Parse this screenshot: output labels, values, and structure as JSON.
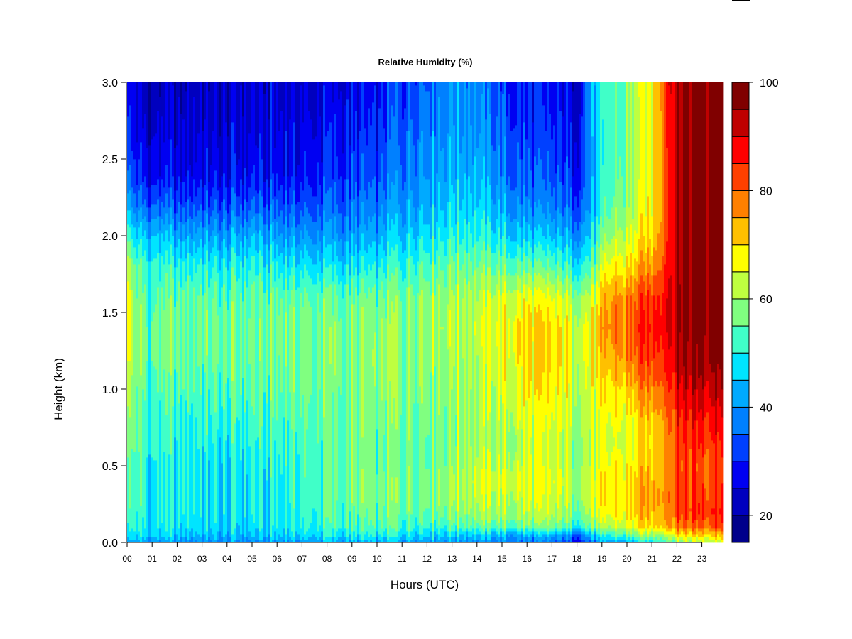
{
  "chart_data": {
    "type": "heatmap",
    "title": "Relative Humidity (%)",
    "xlabel": "Hours (UTC)",
    "ylabel": "Height (km)",
    "x_range": [
      0,
      23.85
    ],
    "y_range": [
      0,
      3.0
    ],
    "x_ticks": [
      "00",
      "01",
      "02",
      "03",
      "04",
      "05",
      "06",
      "07",
      "08",
      "09",
      "10",
      "11",
      "12",
      "13",
      "14",
      "15",
      "16",
      "17",
      "18",
      "19",
      "20",
      "21",
      "22",
      "23"
    ],
    "y_ticks": [
      "0.0",
      "0.5",
      "1.0",
      "1.5",
      "2.0",
      "2.5",
      "3.0"
    ],
    "heights_km": [
      0.0,
      0.05,
      0.1,
      0.2,
      0.3,
      0.4,
      0.5,
      0.65,
      0.8,
      1.0,
      1.2,
      1.4,
      1.6,
      1.8,
      2.0,
      2.2,
      2.4,
      2.6,
      2.8,
      3.0
    ],
    "columns": [
      {
        "hour": 0.0,
        "rh": [
          45,
          50,
          52,
          56,
          58,
          58,
          58,
          60,
          63,
          66,
          70,
          72,
          72,
          68,
          58,
          48,
          40,
          36,
          34,
          32
        ]
      },
      {
        "hour": 0.3,
        "rh": [
          42,
          47,
          50,
          52,
          53,
          53,
          53,
          54,
          55,
          57,
          58,
          58,
          57,
          54,
          46,
          36,
          30,
          27,
          25,
          24
        ]
      },
      {
        "hour": 1,
        "rh": [
          41,
          47,
          49,
          50,
          50,
          50,
          50,
          52,
          52,
          54,
          56,
          56,
          55,
          52,
          46,
          36,
          28,
          26,
          24,
          23
        ]
      },
      {
        "hour": 2,
        "rh": [
          40,
          45,
          48,
          49,
          49,
          49,
          49,
          50,
          51,
          54,
          56,
          56,
          55,
          50,
          42,
          33,
          27,
          25,
          23,
          22
        ]
      },
      {
        "hour": 3,
        "rh": [
          39,
          44,
          47,
          48,
          48,
          48,
          48,
          50,
          51,
          53,
          55,
          56,
          55,
          50,
          42,
          33,
          27,
          25,
          24,
          23
        ]
      },
      {
        "hour": 4,
        "rh": [
          38,
          43,
          45,
          46,
          46,
          46,
          46,
          48,
          50,
          53,
          55,
          55,
          53,
          48,
          40,
          32,
          26,
          24,
          23,
          22
        ]
      },
      {
        "hour": 5,
        "rh": [
          39,
          44,
          47,
          48,
          48,
          48,
          49,
          51,
          52,
          54,
          56,
          56,
          55,
          50,
          43,
          34,
          28,
          26,
          25,
          24
        ]
      },
      {
        "hour": 6,
        "rh": [
          40,
          46,
          48,
          49,
          49,
          49,
          50,
          52,
          53,
          55,
          56,
          57,
          55,
          49,
          41,
          34,
          28,
          27,
          25,
          24
        ]
      },
      {
        "hour": 7,
        "rh": [
          41,
          47,
          50,
          51,
          52,
          52,
          53,
          53,
          54,
          56,
          57,
          57,
          55,
          48,
          40,
          33,
          28,
          27,
          25,
          24
        ]
      },
      {
        "hour": 8,
        "rh": [
          42,
          48,
          51,
          53,
          54,
          54,
          54,
          54,
          55,
          56,
          57,
          57,
          55,
          47,
          40,
          34,
          30,
          28,
          26,
          25
        ]
      },
      {
        "hour": 9,
        "rh": [
          42,
          48,
          52,
          54,
          55,
          55,
          55,
          55,
          55,
          56,
          56,
          56,
          54,
          47,
          40,
          35,
          31,
          29,
          27,
          26
        ]
      },
      {
        "hour": 10,
        "rh": [
          42,
          48,
          52,
          55,
          56,
          56,
          55,
          55,
          56,
          57,
          58,
          57,
          55,
          48,
          41,
          36,
          32,
          30,
          28,
          27
        ]
      },
      {
        "hour": 11,
        "rh": [
          43,
          49,
          53,
          56,
          57,
          57,
          56,
          56,
          57,
          58,
          59,
          59,
          57,
          52,
          46,
          41,
          38,
          36,
          34,
          33
        ]
      },
      {
        "hour": 12,
        "rh": [
          42,
          48,
          53,
          57,
          58,
          58,
          57,
          57,
          58,
          59,
          60,
          61,
          60,
          55,
          49,
          44,
          42,
          40,
          38,
          37
        ]
      },
      {
        "hour": 13,
        "rh": [
          41,
          47,
          54,
          59,
          61,
          61,
          60,
          59,
          59,
          60,
          61,
          62,
          61,
          57,
          51,
          47,
          44,
          42,
          40,
          40
        ]
      },
      {
        "hour": 14,
        "rh": [
          40,
          45,
          54,
          60,
          62,
          63,
          62,
          60,
          60,
          60,
          61,
          62,
          61,
          56,
          50,
          46,
          43,
          41,
          39,
          38
        ]
      },
      {
        "hour": 15,
        "rh": [
          38,
          44,
          55,
          61,
          63,
          64,
          63,
          61,
          62,
          64,
          66,
          67,
          64,
          56,
          48,
          42,
          38,
          36,
          34,
          33
        ]
      },
      {
        "hour": 16,
        "rh": [
          37,
          43,
          56,
          62,
          64,
          65,
          64,
          63,
          65,
          68,
          70,
          71,
          66,
          55,
          45,
          38,
          34,
          32,
          30,
          29
        ]
      },
      {
        "hour": 17,
        "rh": [
          35,
          42,
          55,
          61,
          63,
          64,
          63,
          62,
          64,
          67,
          69,
          69,
          64,
          53,
          43,
          36,
          32,
          30,
          28,
          27
        ]
      },
      {
        "hour": 18,
        "rh": [
          30,
          38,
          52,
          58,
          60,
          61,
          60,
          60,
          62,
          64,
          65,
          65,
          60,
          50,
          41,
          34,
          30,
          28,
          26,
          25
        ]
      },
      {
        "hour": 18.7,
        "rh": [
          36,
          44,
          56,
          62,
          64,
          64,
          62,
          61,
          62,
          64,
          66,
          67,
          63,
          54,
          47,
          42,
          40,
          40,
          42,
          44
        ]
      },
      {
        "hour": 19.2,
        "rh": [
          42,
          50,
          60,
          66,
          68,
          68,
          66,
          64,
          65,
          68,
          72,
          76,
          74,
          66,
          58,
          53,
          52,
          51,
          51,
          51
        ]
      },
      {
        "hour": 20,
        "rh": [
          45,
          55,
          66,
          70,
          70,
          70,
          68,
          66,
          67,
          72,
          78,
          80,
          78,
          70,
          64,
          60,
          58,
          58,
          58,
          58
        ]
      },
      {
        "hour": 21,
        "rh": [
          48,
          60,
          70,
          74,
          75,
          74,
          72,
          70,
          72,
          78,
          84,
          86,
          84,
          76,
          70,
          68,
          67,
          67,
          67,
          68
        ]
      },
      {
        "hour": 21.7,
        "rh": [
          55,
          66,
          76,
          80,
          81,
          80,
          79,
          80,
          82,
          86,
          90,
          92,
          92,
          90,
          88,
          88,
          88,
          89,
          90,
          91
        ]
      },
      {
        "hour": 22.3,
        "rh": [
          60,
          70,
          80,
          84,
          84,
          84,
          83,
          85,
          87,
          92,
          96,
          98,
          98,
          98,
          98,
          98,
          98,
          98,
          98,
          98
        ]
      },
      {
        "hour": 23,
        "rh": [
          64,
          72,
          82,
          86,
          85,
          84,
          83,
          86,
          89,
          94,
          98,
          100,
          100,
          100,
          100,
          100,
          100,
          100,
          100,
          100
        ]
      },
      {
        "hour": 23.85,
        "rh": [
          66,
          74,
          84,
          88,
          86,
          85,
          84,
          87,
          90,
          95,
          99,
          100,
          100,
          100,
          100,
          100,
          100,
          100,
          100,
          100
        ]
      }
    ],
    "colorbar": {
      "min": 15,
      "max": 100,
      "step": 5,
      "ticks": [
        "20",
        "40",
        "60",
        "80",
        "100"
      ],
      "colors": [
        "#00008B",
        "#0000BF",
        "#0000F2",
        "#0040FF",
        "#0080FF",
        "#00AAFF",
        "#00E5FF",
        "#40FFC8",
        "#80FF80",
        "#BFFF40",
        "#FFFF00",
        "#FFC000",
        "#FF8000",
        "#FF4000",
        "#FF0000",
        "#BF0000",
        "#800000"
      ]
    }
  }
}
